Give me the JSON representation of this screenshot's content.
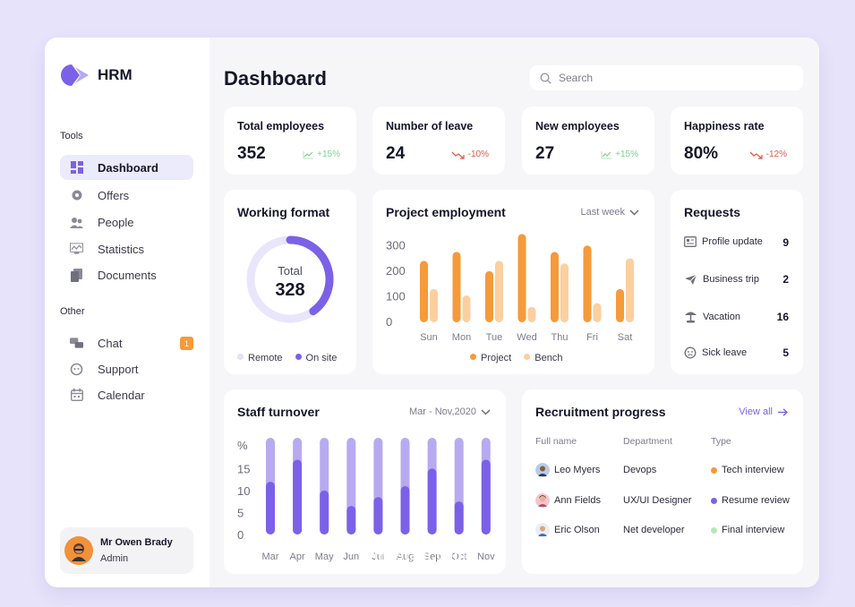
{
  "app": {
    "name": "HRM"
  },
  "sidebar": {
    "tools_label": "Tools",
    "tools": [
      {
        "label": "Dashboard",
        "icon": "grid-icon",
        "active": true
      },
      {
        "label": "Offers",
        "icon": "gear-icon"
      },
      {
        "label": "People",
        "icon": "people-icon"
      },
      {
        "label": "Statistics",
        "icon": "chart-icon"
      },
      {
        "label": "Documents",
        "icon": "document-icon"
      }
    ],
    "other_label": "Other",
    "other": [
      {
        "label": "Chat",
        "icon": "chat-icon",
        "badge": "1"
      },
      {
        "label": "Support",
        "icon": "support-icon"
      },
      {
        "label": "Calendar",
        "icon": "calendar-icon"
      }
    ],
    "user": {
      "name": "Mr Owen Brady",
      "role": "Admin"
    }
  },
  "header": {
    "title": "Dashboard",
    "search_placeholder": "Search"
  },
  "stats": [
    {
      "title": "Total employees",
      "value": "352",
      "trend": "+15%",
      "direction": "up"
    },
    {
      "title": "Number of leave",
      "value": "24",
      "trend": "-10%",
      "direction": "down"
    },
    {
      "title": "New employees",
      "value": "27",
      "trend": "+15%",
      "direction": "up"
    },
    {
      "title": "Happiness rate",
      "value": "80%",
      "trend": "-12%",
      "direction": "down"
    }
  ],
  "working_format": {
    "title": "Working format",
    "center_label": "Total",
    "center_value": "328",
    "legend": [
      "Remote",
      "On site"
    ]
  },
  "project_employment": {
    "title": "Project employment",
    "range": "Last week",
    "legend": [
      "Project",
      "Bench"
    ]
  },
  "requests": {
    "title": "Requests",
    "items": [
      {
        "label": "Profile update",
        "count": "9",
        "icon": "id-card-icon"
      },
      {
        "label": "Business trip",
        "count": "2",
        "icon": "plane-icon"
      },
      {
        "label": "Vacation",
        "count": "16",
        "icon": "palm-tree-icon"
      },
      {
        "label": "Sick leave",
        "count": "5",
        "icon": "sick-face-icon"
      }
    ]
  },
  "staff_turnover": {
    "title": "Staff turnover",
    "range": "Mar - Nov,2020"
  },
  "recruitment": {
    "title": "Recruitment progress",
    "view_all": "View all",
    "headers": [
      "Full name",
      "Department",
      "Type"
    ],
    "rows": [
      {
        "name": "Leo Myers",
        "department": "Devops",
        "type": "Tech interview",
        "type_color": "#f69a3a"
      },
      {
        "name": "Ann Fields",
        "department": "UX/UI Designer",
        "type": "Resume review",
        "type_color": "#7b61e8"
      },
      {
        "name": "Eric Olson",
        "department": "Net developer",
        "type": "Final interview",
        "type_color": "#b9e6b9"
      }
    ]
  },
  "watermark": "mostaql.com",
  "colors": {
    "accent": "#7b61e8",
    "accent_light": "#b7aaf0",
    "orange": "#f69a3a",
    "orange_light": "#fccf9f",
    "up": "#7fd08b",
    "down": "#e3594a"
  },
  "chart_data": [
    {
      "type": "pie",
      "title": "Working format",
      "categories": [
        "Remote",
        "On site"
      ],
      "values": [
        60,
        40
      ]
    },
    {
      "type": "bar",
      "title": "Project employment",
      "categories": [
        "Sun",
        "Mon",
        "Tue",
        "Wed",
        "Thu",
        "Fri",
        "Sat"
      ],
      "series": [
        {
          "name": "Project",
          "values": [
            240,
            275,
            200,
            345,
            275,
            300,
            130
          ]
        },
        {
          "name": "Bench",
          "values": [
            130,
            105,
            240,
            60,
            230,
            75,
            250
          ]
        }
      ],
      "yticks": [
        "300",
        "200",
        "100",
        "0"
      ],
      "ylim": [
        0,
        350
      ]
    },
    {
      "type": "bar",
      "title": "Staff turnover",
      "categories": [
        "Mar",
        "Apr",
        "May",
        "Jun",
        "Jul",
        "Aug",
        "Sep",
        "Oct",
        "Nov"
      ],
      "ylabel": "%",
      "yticks": [
        "15",
        "10",
        "5",
        "0"
      ],
      "ylim": [
        0,
        22
      ],
      "series": [
        {
          "name": "total",
          "values": [
            22,
            22,
            22,
            22,
            22,
            22,
            22,
            22,
            22
          ]
        },
        {
          "name": "value",
          "values": [
            12,
            17,
            10,
            6.5,
            8.5,
            11,
            15,
            7.5,
            17
          ]
        }
      ]
    }
  ]
}
